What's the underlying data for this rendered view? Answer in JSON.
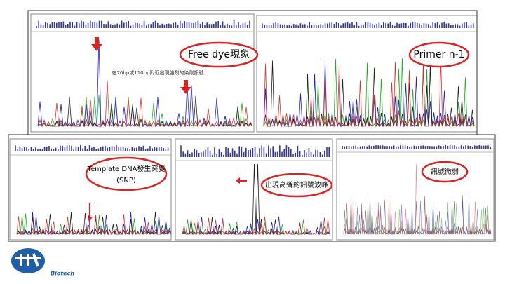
{
  "panels": [
    {
      "label": "Free dye現象",
      "note": "在70bp或110bp附近出現強烈的染劑訊號"
    },
    {
      "label": "Primer n-1"
    },
    {
      "label": "Template DNA發生突變",
      "label2": "(SNP)"
    },
    {
      "label": "出現高聳的訊號波峰"
    },
    {
      "label": "訊號微弱"
    }
  ],
  "logo": {
    "text": "Biotech"
  }
}
